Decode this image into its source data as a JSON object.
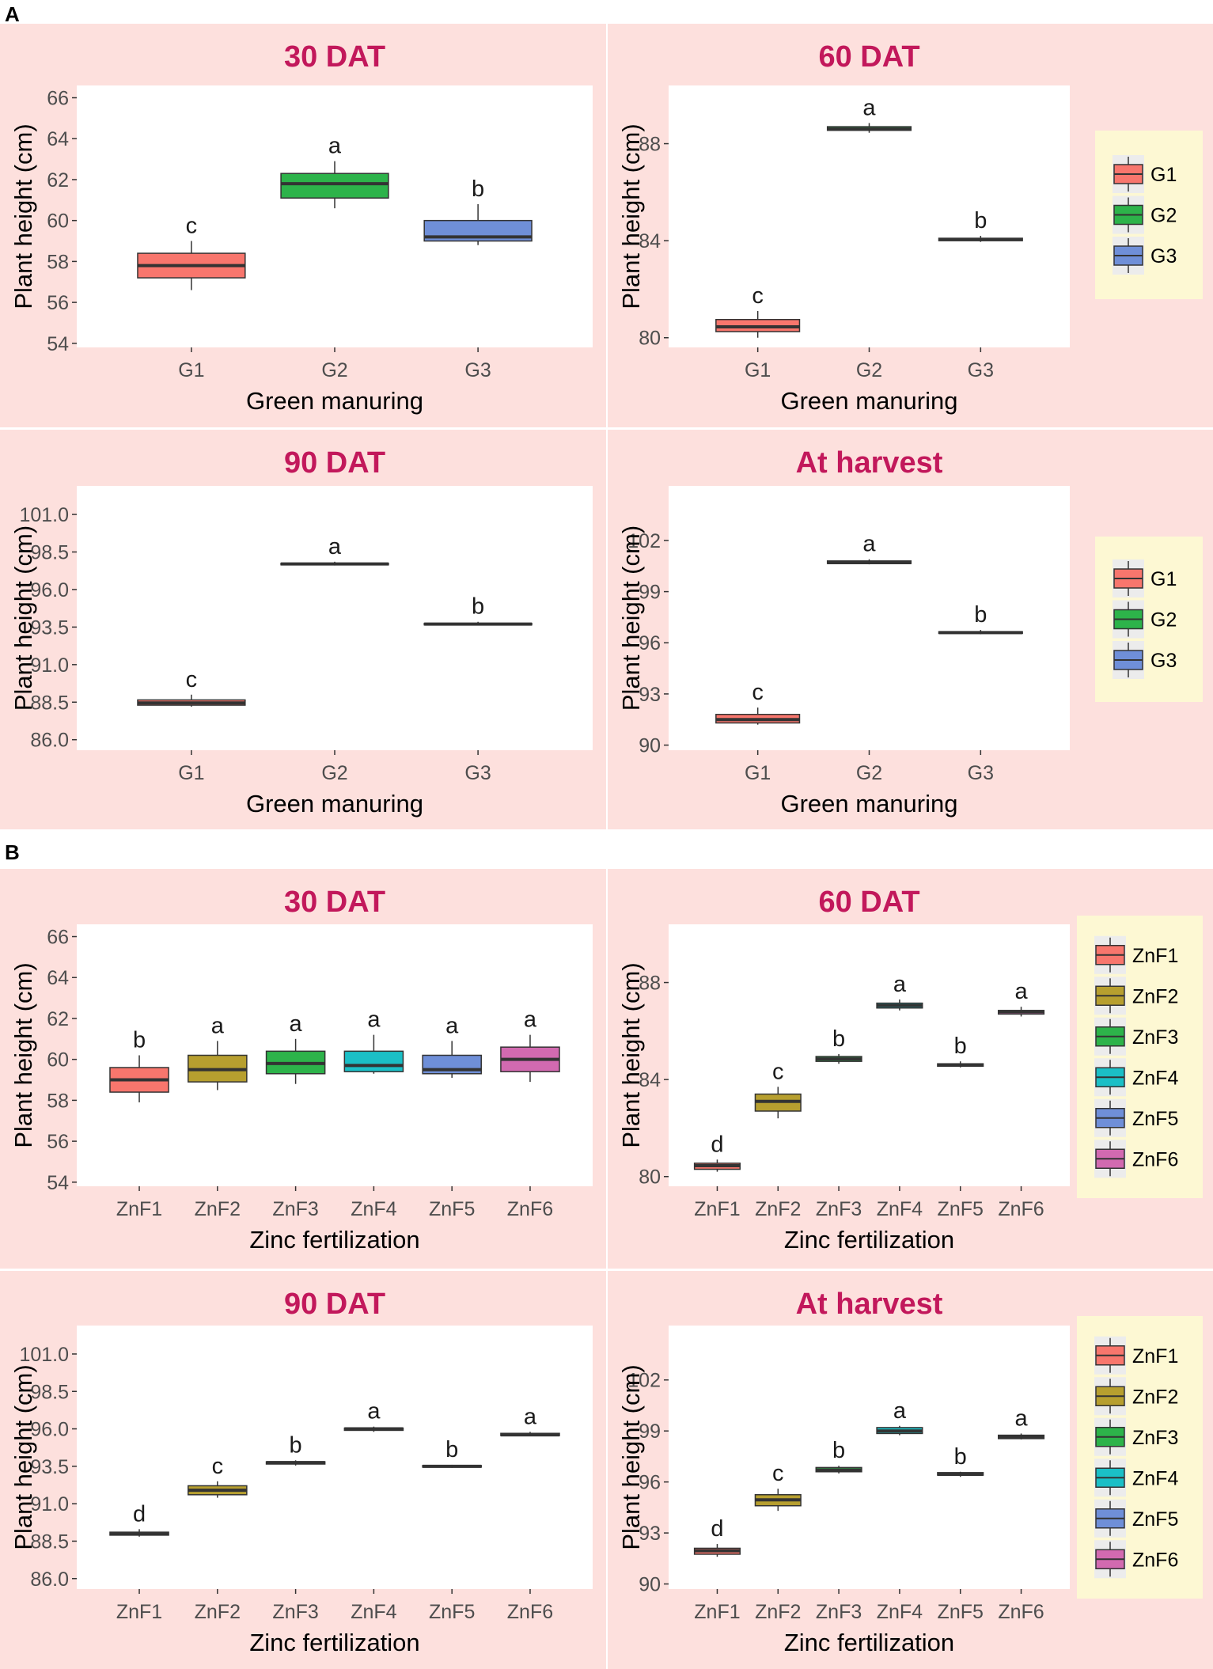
{
  "figure": {
    "panel_labels": [
      "A",
      "B"
    ],
    "colors": {
      "strip_background": "#fde0dd",
      "title_color": "#c2185b",
      "legend_background": "#fdf8d3",
      "G1": "#f8766d",
      "G2": "#2db34a",
      "G3": "#6f8fd8",
      "ZnF1": "#f8766d",
      "ZnF2": "#b79f2f",
      "ZnF3": "#2db34a",
      "ZnF4": "#1bbfc6",
      "ZnF5": "#6f8fd8",
      "ZnF6": "#d26ab0"
    }
  },
  "chart_data": [
    {
      "panel": "A",
      "type": "box",
      "title": "30 DAT",
      "xlabel": "Green manuring",
      "ylabel": "Plant height (cm)",
      "ylim": [
        53.8,
        66.6
      ],
      "yticks": [
        "54",
        "56",
        "58",
        "60",
        "62",
        "64",
        "66"
      ],
      "categories": [
        "G1",
        "G2",
        "G3"
      ],
      "letters": [
        "c",
        "a",
        "b"
      ],
      "boxes": [
        {
          "min": 56.6,
          "q1": 57.2,
          "median": 57.8,
          "q3": 58.4,
          "max": 59.0
        },
        {
          "min": 60.6,
          "q1": 61.1,
          "median": 61.8,
          "q3": 62.3,
          "max": 62.9
        },
        {
          "min": 58.8,
          "q1": 59.0,
          "median": 59.2,
          "q3": 60.0,
          "max": 60.8
        }
      ]
    },
    {
      "panel": "A",
      "type": "box",
      "title": "60 DAT",
      "xlabel": "Green manuring",
      "ylabel": "Plant height (cm)",
      "ylim": [
        79.6,
        90.4
      ],
      "yticks": [
        "80",
        "84",
        "88"
      ],
      "categories": [
        "G1",
        "G2",
        "G3"
      ],
      "letters": [
        "c",
        "a",
        "b"
      ],
      "boxes": [
        {
          "min": 80.0,
          "q1": 80.25,
          "median": 80.45,
          "q3": 80.75,
          "max": 81.1
        },
        {
          "min": 88.45,
          "q1": 88.55,
          "median": 88.6,
          "q3": 88.7,
          "max": 88.85
        },
        {
          "min": 83.95,
          "q1": 84.0,
          "median": 84.05,
          "q3": 84.1,
          "max": 84.2
        }
      ]
    },
    {
      "panel": "A",
      "type": "box",
      "title": "90 DAT",
      "xlabel": "Green manuring",
      "ylabel": "Plant height (cm)",
      "ylim": [
        85.3,
        102.9
      ],
      "yticks": [
        "86.0",
        "88.5",
        "91.0",
        "93.5",
        "96.0",
        "98.5",
        "101.0"
      ],
      "categories": [
        "G1",
        "G2",
        "G3"
      ],
      "letters": [
        "c",
        "a",
        "b"
      ],
      "boxes": [
        {
          "min": 88.2,
          "q1": 88.3,
          "median": 88.45,
          "q3": 88.65,
          "max": 89.0
        },
        {
          "min": 97.6,
          "q1": 97.65,
          "median": 97.7,
          "q3": 97.75,
          "max": 97.85
        },
        {
          "min": 93.6,
          "q1": 93.65,
          "median": 93.7,
          "q3": 93.75,
          "max": 93.85
        }
      ]
    },
    {
      "panel": "A",
      "type": "box",
      "title": "At harvest",
      "xlabel": "Green manuring",
      "ylabel": "Plant height (cm)",
      "ylim": [
        89.7,
        105.2
      ],
      "yticks": [
        "90",
        "93",
        "96",
        "99",
        "102"
      ],
      "categories": [
        "G1",
        "G2",
        "G3"
      ],
      "letters": [
        "c",
        "a",
        "b"
      ],
      "boxes": [
        {
          "min": 91.2,
          "q1": 91.3,
          "median": 91.5,
          "q3": 91.8,
          "max": 92.2
        },
        {
          "min": 100.6,
          "q1": 100.65,
          "median": 100.7,
          "q3": 100.8,
          "max": 100.9
        },
        {
          "min": 96.5,
          "q1": 96.55,
          "median": 96.6,
          "q3": 96.65,
          "max": 96.75
        }
      ]
    },
    {
      "panel": "B",
      "type": "box",
      "title": "30 DAT",
      "xlabel": "Zinc fertilization",
      "ylabel": "Plant height (cm)",
      "ylim": [
        53.8,
        66.6
      ],
      "yticks": [
        "54",
        "56",
        "58",
        "60",
        "62",
        "64",
        "66"
      ],
      "categories": [
        "ZnF1",
        "ZnF2",
        "ZnF3",
        "ZnF4",
        "ZnF5",
        "ZnF6"
      ],
      "letters": [
        "b",
        "a",
        "a",
        "a",
        "a",
        "a"
      ],
      "boxes": [
        {
          "min": 57.9,
          "q1": 58.4,
          "median": 59.0,
          "q3": 59.6,
          "max": 60.2
        },
        {
          "min": 58.5,
          "q1": 58.9,
          "median": 59.5,
          "q3": 60.2,
          "max": 60.9
        },
        {
          "min": 58.8,
          "q1": 59.3,
          "median": 59.8,
          "q3": 60.4,
          "max": 61.0
        },
        {
          "min": 59.3,
          "q1": 59.4,
          "median": 59.7,
          "q3": 60.4,
          "max": 61.2
        },
        {
          "min": 59.1,
          "q1": 59.3,
          "median": 59.5,
          "q3": 60.2,
          "max": 60.9
        },
        {
          "min": 58.9,
          "q1": 59.4,
          "median": 60.0,
          "q3": 60.6,
          "max": 61.2
        }
      ]
    },
    {
      "panel": "B",
      "type": "box",
      "title": "60 DAT",
      "xlabel": "Zinc fertilization",
      "ylabel": "Plant height (cm)",
      "ylim": [
        79.6,
        90.4
      ],
      "yticks": [
        "80",
        "84",
        "88"
      ],
      "categories": [
        "ZnF1",
        "ZnF2",
        "ZnF3",
        "ZnF4",
        "ZnF5",
        "ZnF6"
      ],
      "letters": [
        "d",
        "c",
        "b",
        "a",
        "b",
        "a"
      ],
      "boxes": [
        {
          "min": 80.2,
          "q1": 80.3,
          "median": 80.45,
          "q3": 80.55,
          "max": 80.7
        },
        {
          "min": 82.4,
          "q1": 82.7,
          "median": 83.1,
          "q3": 83.4,
          "max": 83.7
        },
        {
          "min": 84.65,
          "q1": 84.75,
          "median": 84.85,
          "q3": 84.95,
          "max": 85.05
        },
        {
          "min": 86.85,
          "q1": 86.95,
          "median": 87.05,
          "q3": 87.15,
          "max": 87.3
        },
        {
          "min": 84.5,
          "q1": 84.55,
          "median": 84.6,
          "q3": 84.65,
          "max": 84.75
        },
        {
          "min": 86.6,
          "q1": 86.7,
          "median": 86.8,
          "q3": 86.85,
          "max": 87.0
        }
      ]
    },
    {
      "panel": "B",
      "type": "box",
      "title": "90 DAT",
      "xlabel": "Zinc fertilization",
      "ylabel": "Plant height (cm)",
      "ylim": [
        85.3,
        102.9
      ],
      "yticks": [
        "86.0",
        "88.5",
        "91.0",
        "93.5",
        "96.0",
        "98.5",
        "101.0"
      ],
      "categories": [
        "ZnF1",
        "ZnF2",
        "ZnF3",
        "ZnF4",
        "ZnF5",
        "ZnF6"
      ],
      "letters": [
        "d",
        "c",
        "b",
        "a",
        "b",
        "a"
      ],
      "boxes": [
        {
          "min": 88.8,
          "q1": 88.9,
          "median": 89.0,
          "q3": 89.1,
          "max": 89.3
        },
        {
          "min": 91.4,
          "q1": 91.6,
          "median": 91.9,
          "q3": 92.2,
          "max": 92.5
        },
        {
          "min": 93.55,
          "q1": 93.65,
          "median": 93.75,
          "q3": 93.8,
          "max": 93.9
        },
        {
          "min": 95.8,
          "q1": 95.9,
          "median": 96.0,
          "q3": 96.05,
          "max": 96.15
        },
        {
          "min": 93.4,
          "q1": 93.45,
          "median": 93.5,
          "q3": 93.55,
          "max": 93.6
        },
        {
          "min": 95.5,
          "q1": 95.55,
          "median": 95.6,
          "q3": 95.7,
          "max": 95.8
        }
      ]
    },
    {
      "panel": "B",
      "type": "box",
      "title": "At harvest",
      "xlabel": "Zinc fertilization",
      "ylabel": "Plant height (cm)",
      "ylim": [
        89.7,
        105.2
      ],
      "yticks": [
        "90",
        "93",
        "96",
        "99",
        "102"
      ],
      "categories": [
        "ZnF1",
        "ZnF2",
        "ZnF3",
        "ZnF4",
        "ZnF5",
        "ZnF6"
      ],
      "letters": [
        "d",
        "c",
        "b",
        "a",
        "b",
        "a"
      ],
      "boxes": [
        {
          "min": 91.6,
          "q1": 91.75,
          "median": 91.95,
          "q3": 92.1,
          "max": 92.35
        },
        {
          "min": 94.3,
          "q1": 94.6,
          "median": 94.95,
          "q3": 95.25,
          "max": 95.6
        },
        {
          "min": 96.5,
          "q1": 96.6,
          "median": 96.7,
          "q3": 96.85,
          "max": 96.95
        },
        {
          "min": 98.75,
          "q1": 98.85,
          "median": 99.0,
          "q3": 99.2,
          "max": 99.3
        },
        {
          "min": 96.3,
          "q1": 96.4,
          "median": 96.45,
          "q3": 96.55,
          "max": 96.6
        },
        {
          "min": 98.5,
          "q1": 98.55,
          "median": 98.65,
          "q3": 98.75,
          "max": 98.85
        }
      ]
    }
  ],
  "legends": [
    {
      "entries": [
        "G1",
        "G2",
        "G3"
      ]
    },
    {
      "entries": [
        "G1",
        "G2",
        "G3"
      ]
    },
    {
      "entries": [
        "ZnF1",
        "ZnF2",
        "ZnF3",
        "ZnF4",
        "ZnF5",
        "ZnF6"
      ]
    },
    {
      "entries": [
        "ZnF1",
        "ZnF2",
        "ZnF3",
        "ZnF4",
        "ZnF5",
        "ZnF6"
      ]
    }
  ]
}
